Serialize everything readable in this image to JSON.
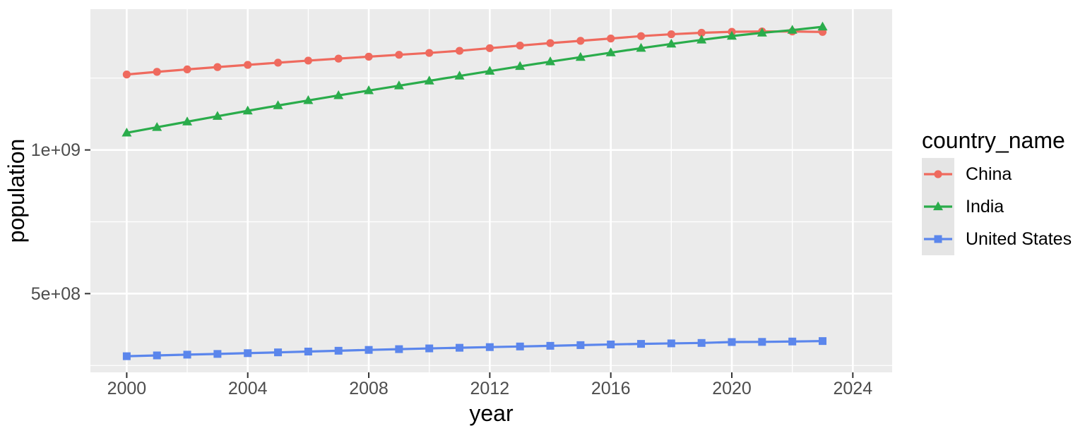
{
  "chart_data": {
    "type": "line",
    "title": "",
    "xlabel": "year",
    "ylabel": "population",
    "legend_title": "country_name",
    "legend_position": "right",
    "grid": true,
    "x": [
      2000,
      2001,
      2002,
      2003,
      2004,
      2005,
      2006,
      2007,
      2008,
      2009,
      2010,
      2011,
      2012,
      2013,
      2014,
      2015,
      2016,
      2017,
      2018,
      2019,
      2020,
      2021,
      2022,
      2023
    ],
    "series": [
      {
        "name": "China",
        "color": "#EF6A5E",
        "marker": "circle",
        "values": [
          1262645000,
          1271850000,
          1280400000,
          1288400000,
          1296075000,
          1303720000,
          1311020000,
          1317885000,
          1324655000,
          1331260000,
          1337705000,
          1345035000,
          1354190000,
          1363240000,
          1371860000,
          1379860000,
          1387790000,
          1396215000,
          1402760000,
          1407745000,
          1411100000,
          1412360000,
          1412175000,
          1410710000
        ]
      },
      {
        "name": "India",
        "color": "#2AAC4B",
        "marker": "triangle",
        "values": [
          1059633675,
          1078970907,
          1098313039,
          1117415123,
          1136264583,
          1154638713,
          1172373788,
          1189691809,
          1206734806,
          1223640160,
          1240613620,
          1257621191,
          1274487215,
          1291132063,
          1307246509,
          1322866505,
          1338636340,
          1354195680,
          1369003306,
          1383112050,
          1396387127,
          1407563842,
          1417173173,
          1428627663
        ]
      },
      {
        "name": "United States",
        "color": "#5B86EC",
        "marker": "square",
        "values": [
          282162411,
          284968955,
          287625193,
          290107933,
          292805298,
          295516599,
          298379912,
          301231207,
          304093966,
          306771529,
          309327143,
          311583481,
          313877662,
          316059947,
          318386329,
          320738994,
          323071755,
          325122128,
          326838199,
          328329953,
          331511512,
          332031554,
          333287557,
          334914895
        ]
      }
    ],
    "axes": {
      "x_range": [
        1998.8,
        2025.3
      ],
      "y_range": [
        226000000,
        1490000000
      ],
      "x_ticks": [
        {
          "value": 2000,
          "label": "2000"
        },
        {
          "value": 2004,
          "label": "2004"
        },
        {
          "value": 2008,
          "label": "2008"
        },
        {
          "value": 2012,
          "label": "2012"
        },
        {
          "value": 2016,
          "label": "2016"
        },
        {
          "value": 2020,
          "label": "2020"
        },
        {
          "value": 2024,
          "label": "2024"
        }
      ],
      "y_ticks": [
        {
          "value": 500000000,
          "label": "5e+08"
        },
        {
          "value": 1000000000,
          "label": "1e+09"
        }
      ],
      "x_minor": [
        2002,
        2006,
        2010,
        2014,
        2018,
        2022
      ],
      "y_minor": [
        250000000,
        750000000,
        1250000000
      ]
    },
    "colors": {
      "background": "#FFFFFF",
      "panel_bg": "#EBEBEB",
      "grid": "#FFFFFF",
      "axis_text": "#4D4D4D",
      "tick_mark": "#333333",
      "title_text": "#000000",
      "legend_key_bg": "#E5E5E5"
    }
  }
}
